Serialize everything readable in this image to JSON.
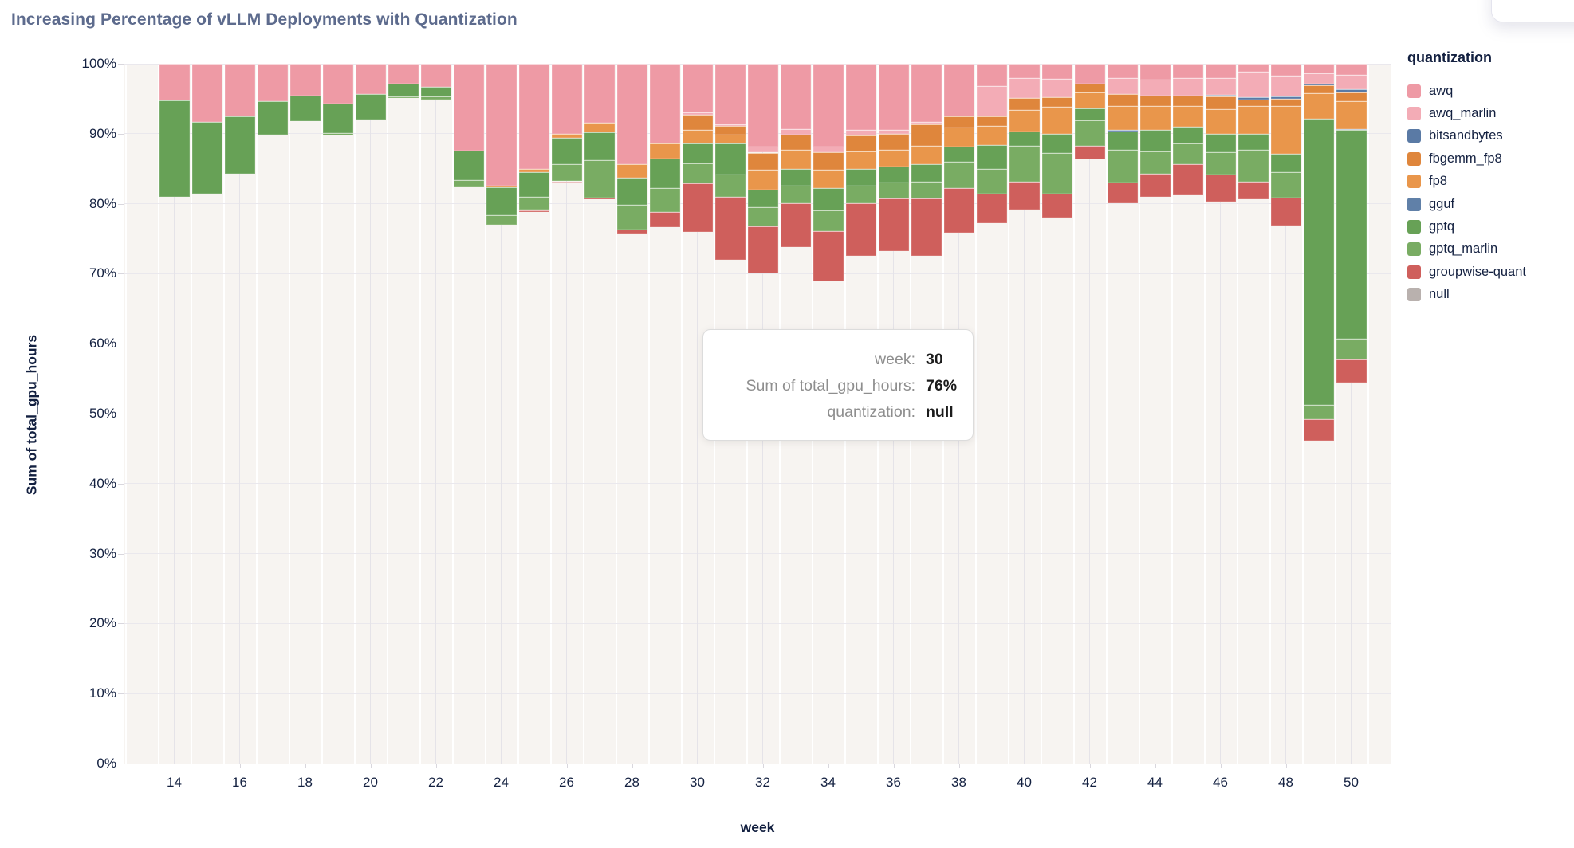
{
  "title": "Increasing Percentage of vLLM Deployments with Quantization",
  "y_axis": {
    "title": "Sum of total_gpu_hours",
    "ticks": [
      "0%",
      "10%",
      "20%",
      "30%",
      "40%",
      "50%",
      "60%",
      "70%",
      "80%",
      "90%",
      "100%"
    ]
  },
  "x_axis": {
    "title": "week",
    "ticks": [
      14,
      16,
      18,
      20,
      22,
      24,
      26,
      28,
      30,
      32,
      34,
      36,
      38,
      40,
      42,
      44,
      46,
      48,
      50
    ]
  },
  "legend": {
    "title": "quantization",
    "items": [
      {
        "label": "awq",
        "color": "#ee9aa5"
      },
      {
        "label": "awq_marlin",
        "color": "#f3acb6"
      },
      {
        "label": "bitsandbytes",
        "color": "#5a7aa5"
      },
      {
        "label": "fbgemm_fp8",
        "color": "#df863c"
      },
      {
        "label": "fp8",
        "color": "#e9964b"
      },
      {
        "label": "gguf",
        "color": "#6080a8"
      },
      {
        "label": "gptq",
        "color": "#67a156"
      },
      {
        "label": "gptq_marlin",
        "color": "#79ac63"
      },
      {
        "label": "groupwise-quant",
        "color": "#cf5f5c"
      },
      {
        "label": "null",
        "color": "#b9b1ae"
      }
    ]
  },
  "tooltip": {
    "rows": [
      {
        "label": "week:",
        "value": "30"
      },
      {
        "label": "Sum of total_gpu_hours:",
        "value": "76%"
      },
      {
        "label": "quantization:",
        "value": "null"
      }
    ]
  },
  "chart_data": {
    "type": "bar",
    "stacked": true,
    "normalized_percent": true,
    "title": "Increasing Percentage of vLLM Deployments with Quantization",
    "xlabel": "week",
    "ylabel": "Sum of total_gpu_hours",
    "ylim": [
      0,
      100
    ],
    "x_domain_weeks": [
      13,
      51
    ],
    "grid": true,
    "legend_position": "right",
    "x": [
      14,
      15,
      16,
      17,
      18,
      19,
      20,
      21,
      22,
      23,
      24,
      25,
      26,
      27,
      28,
      29,
      30,
      31,
      32,
      33,
      34,
      35,
      36,
      37,
      38,
      39,
      40,
      41,
      42,
      43,
      44,
      45,
      46,
      47,
      48,
      49,
      50
    ],
    "stack_order_bottom_to_top": [
      "null",
      "groupwise-quant",
      "gptq_marlin",
      "gptq",
      "gguf",
      "fp8",
      "fbgemm_fp8",
      "bitsandbytes",
      "awq_marlin",
      "awq"
    ],
    "series": [
      {
        "name": "awq",
        "color": "#ee9aa5",
        "values": [
          5.2,
          8.3,
          7.5,
          5.4,
          4.5,
          5.7,
          4.3,
          2.9,
          3.3,
          12.4,
          17.4,
          15.0,
          10.0,
          8.4,
          14.4,
          11.4,
          7.0,
          8.6,
          11.8,
          9.3,
          11.9,
          9.5,
          9.5,
          8.3,
          7.5,
          3.2,
          2.1,
          2.2,
          2.9,
          2.1,
          2.3,
          2.1,
          2.1,
          1.1,
          1.7,
          1.4,
          1.6
        ]
      },
      {
        "name": "awq_marlin",
        "color": "#f3acb6",
        "values": [
          0,
          0,
          0,
          0,
          0,
          0,
          0,
          0,
          0,
          0,
          0,
          0,
          0,
          0,
          0,
          0,
          0.3,
          0.3,
          0.9,
          0.8,
          0.7,
          0.7,
          0.5,
          0.3,
          0,
          4.3,
          2.8,
          2.6,
          0,
          2.2,
          2.2,
          2.4,
          2.3,
          3.7,
          3.0,
          1.4,
          2.1
        ]
      },
      {
        "name": "bitsandbytes",
        "color": "#5a7aa5",
        "values": [
          0,
          0,
          0,
          0,
          0,
          0,
          0,
          0,
          0,
          0,
          0,
          0,
          0,
          0,
          0,
          0,
          0,
          0,
          0,
          0,
          0,
          0,
          0,
          0,
          0,
          0,
          0,
          0,
          0,
          0,
          0,
          0,
          0.3,
          0.3,
          0.3,
          0.3,
          0.4
        ]
      },
      {
        "name": "fbgemm_fp8",
        "color": "#df863c",
        "values": [
          0,
          0,
          0,
          0,
          0,
          0,
          0,
          0,
          0,
          0,
          0,
          0,
          0,
          0,
          0,
          0,
          2.1,
          1.2,
          2.4,
          2.2,
          2.5,
          2.3,
          2.3,
          3.1,
          1.6,
          1.4,
          1.7,
          1.4,
          1.2,
          1.7,
          1.5,
          1.5,
          1.8,
          0.9,
          1.0,
          1.1,
          1.2
        ]
      },
      {
        "name": "fp8",
        "color": "#e9964b",
        "values": [
          0,
          0,
          0,
          0,
          0,
          0,
          0,
          0,
          0,
          0,
          0.3,
          0.5,
          0.6,
          1.4,
          1.9,
          2.2,
          2.0,
          1.3,
          2.9,
          2.7,
          2.7,
          2.5,
          2.4,
          2.7,
          2.8,
          2.7,
          3.1,
          3.8,
          2.3,
          3.5,
          3.5,
          3.0,
          3.5,
          4.0,
          6.9,
          3.7,
          4.0
        ]
      },
      {
        "name": "gguf",
        "color": "#6080a8",
        "values": [
          0,
          0,
          0,
          0,
          0,
          0,
          0,
          0,
          0,
          0,
          0,
          0,
          0,
          0,
          0,
          0,
          0,
          0,
          0,
          0,
          0,
          0,
          0,
          0,
          0,
          0,
          0,
          0,
          0,
          0.2,
          0,
          0,
          0,
          0,
          0,
          0,
          0.2
        ]
      },
      {
        "name": "gptq",
        "color": "#67a156",
        "values": [
          13.8,
          10.3,
          8.2,
          4.7,
          3.7,
          4.2,
          3.7,
          1.8,
          1.4,
          4.2,
          3.9,
          3.5,
          3.8,
          4.0,
          3.9,
          4.2,
          2.8,
          4.4,
          2.5,
          2.4,
          3.2,
          2.4,
          2.3,
          2.5,
          2.1,
          3.4,
          2.0,
          2.7,
          1.7,
          2.6,
          3.0,
          2.4,
          2.6,
          2.3,
          2.6,
          40.8,
          29.8
        ]
      },
      {
        "name": "gptq_marlin",
        "color": "#79ac63",
        "values": [
          0,
          0,
          0,
          0,
          0,
          0.3,
          0,
          0.2,
          0.4,
          1.1,
          1.4,
          1.9,
          2.4,
          5.3,
          3.5,
          3.4,
          2.9,
          3.2,
          2.7,
          2.5,
          2.9,
          2.5,
          2.3,
          2.4,
          3.8,
          3.6,
          5.2,
          5.9,
          3.6,
          4.7,
          3.2,
          3.0,
          3.2,
          4.6,
          3.6,
          2.1,
          3.0
        ]
      },
      {
        "name": "groupwise-quant",
        "color": "#cf5f5c",
        "values": [
          0,
          0,
          0,
          0,
          0,
          0,
          0,
          0,
          0,
          0,
          0,
          0.3,
          0.3,
          0.3,
          0.6,
          2.1,
          6.9,
          9.0,
          6.8,
          6.3,
          7.2,
          7.6,
          7.5,
          8.2,
          6.4,
          4.2,
          3.9,
          3.4,
          2.0,
          2.9,
          3.3,
          4.4,
          3.9,
          2.5,
          4.0,
          3.1,
          3.3
        ]
      },
      {
        "name": "null",
        "color": "#f7f4f1",
        "values": [
          81.0,
          81.4,
          84.3,
          89.9,
          91.8,
          89.8,
          92.0,
          95.1,
          94.9,
          82.3,
          77.0,
          78.8,
          82.9,
          80.6,
          75.7,
          76.7,
          76.0,
          72.0,
          70.0,
          73.8,
          68.9,
          72.5,
          73.2,
          72.5,
          75.8,
          77.2,
          79.2,
          78.0,
          86.3,
          80.1,
          81.0,
          81.2,
          80.3,
          80.6,
          76.9,
          46.1,
          54.4
        ]
      }
    ]
  }
}
